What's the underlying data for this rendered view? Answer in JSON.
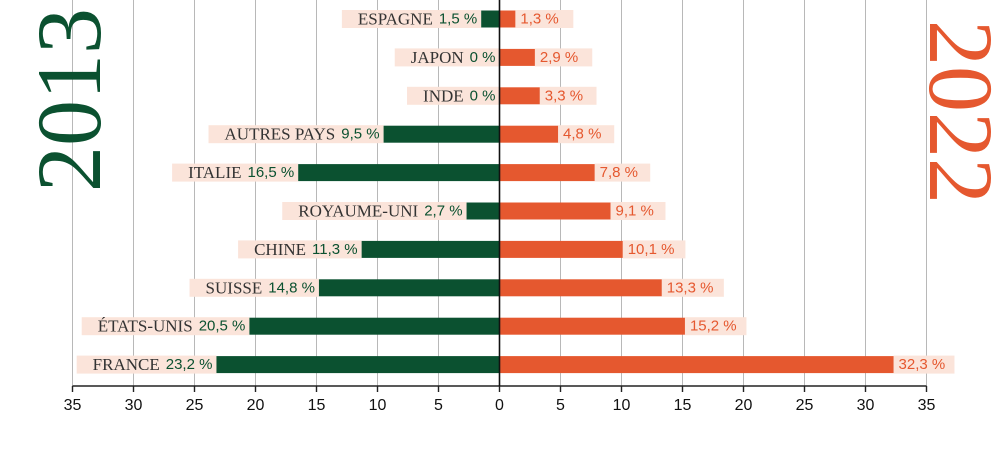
{
  "chart_data": {
    "type": "bar",
    "orientation": "horizontal-diverging",
    "categories": [
      "ESPAGNE",
      "JAPON",
      "INDE",
      "AUTRES PAYS",
      "ITALIE",
      "ROYAUME-UNI",
      "CHINE",
      "SUISSE",
      "ÉTATS-UNIS",
      "FRANCE"
    ],
    "series": [
      {
        "name": "2013",
        "side": "left",
        "color": "#0b5130",
        "values": [
          1.5,
          0,
          0,
          9.5,
          16.5,
          2.7,
          11.3,
          14.8,
          20.5,
          23.2
        ],
        "labels": [
          "1,5 %",
          "0 %",
          "0 %",
          "9,5 %",
          "16,5 %",
          "2,7 %",
          "11,3 %",
          "14,8 %",
          "20,5 %",
          "23,2 %"
        ]
      },
      {
        "name": "2022",
        "side": "right",
        "color": "#e5582f",
        "values": [
          1.3,
          2.9,
          3.3,
          4.8,
          7.8,
          9.1,
          10.1,
          13.3,
          15.2,
          32.3
        ],
        "labels": [
          "1,3 %",
          "2,9 %",
          "3,3 %",
          "4,8 %",
          "7,8 %",
          "9,1 %",
          "10,1 %",
          "13,3 %",
          "15,2 %",
          "32,3 %"
        ]
      }
    ],
    "xticks": [
      "35",
      "30",
      "25",
      "20",
      "15",
      "10",
      "5",
      "0",
      "5",
      "10",
      "15",
      "20",
      "25",
      "30",
      "35"
    ],
    "xlim": [
      -35,
      35
    ],
    "grid": true,
    "label_background_color": "#fbe4da",
    "gridline_color": "#b8b8b8"
  }
}
